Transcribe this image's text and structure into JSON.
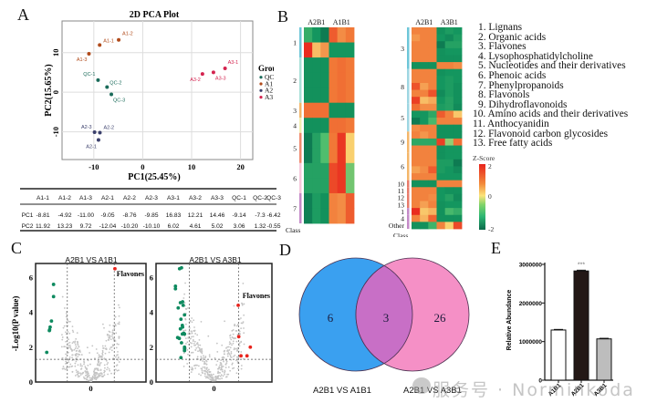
{
  "panels": {
    "A": {
      "letter": "A"
    },
    "B": {
      "letter": "B"
    },
    "C": {
      "letter": "C"
    },
    "D": {
      "letter": "D"
    },
    "E": {
      "letter": "E"
    }
  },
  "watermark": {
    "text": "服务号 · Norminkoda"
  },
  "chart_data": [
    {
      "id": "pca",
      "type": "scatter",
      "title": "2D PCA Plot",
      "xlabel": "PC1(25.45%)",
      "ylabel": "PC2(15.65%)",
      "xlim": [
        -16.5,
        22.5
      ],
      "ylim": [
        -17,
        18
      ],
      "xticks": [
        -10,
        0,
        10,
        20
      ],
      "yticks": [
        -10,
        0,
        10
      ],
      "grid": true,
      "legend_title": "Group",
      "legend_position": "right",
      "groups": [
        {
          "name": "QC",
          "color": "#1a6b5a"
        },
        {
          "name": "A1",
          "color": "#b04a1a"
        },
        {
          "name": "A2",
          "color": "#3a3f6b"
        },
        {
          "name": "A3",
          "color": "#d4234f"
        }
      ],
      "points": [
        {
          "label": "A1-1",
          "group": "A1",
          "x": -8.81,
          "y": 11.92
        },
        {
          "label": "A1-2",
          "group": "A1",
          "x": -4.92,
          "y": 13.23
        },
        {
          "label": "A1-3",
          "group": "A1",
          "x": -11.0,
          "y": 9.72
        },
        {
          "label": "A2-1",
          "group": "A2",
          "x": -9.05,
          "y": -12.04
        },
        {
          "label": "A2-2",
          "group": "A2",
          "x": -8.76,
          "y": -10.2
        },
        {
          "label": "A2-3",
          "group": "A2",
          "x": -9.85,
          "y": -10.1
        },
        {
          "label": "A3-1",
          "group": "A3",
          "x": 16.83,
          "y": 6.02
        },
        {
          "label": "A3-2",
          "group": "A3",
          "x": 12.21,
          "y": 4.61
        },
        {
          "label": "A3-3",
          "group": "A3",
          "x": 14.46,
          "y": 5.02
        },
        {
          "label": "QC-1",
          "group": "QC",
          "x": -9.14,
          "y": 3.06
        },
        {
          "label": "QC-2",
          "group": "QC",
          "x": -7.3,
          "y": 1.32
        },
        {
          "label": "QC-3",
          "group": "QC",
          "x": -6.42,
          "y": -0.55
        }
      ]
    },
    {
      "id": "pca-table",
      "type": "table",
      "columns": [
        "",
        "A1-1",
        "A1-2",
        "A1-3",
        "A2-1",
        "A2-2",
        "A2-3",
        "A3-1",
        "A3-2",
        "A3-3",
        "QC-1",
        "QC-2",
        "QC-3"
      ],
      "rows": [
        [
          "PC1",
          "-8.81",
          "-4.92",
          "-11.00",
          "-9.05",
          "-8.76",
          "-9.85",
          "16.83",
          "12.21",
          "14.46",
          "-9.14",
          "-7.3",
          "-6.42"
        ],
        [
          "PC2",
          "11.92",
          "13.23",
          "9.72",
          "-12.04",
          "-10.20",
          "-10.10",
          "6.02",
          "4.61",
          "5.02",
          "3.06",
          "1.32",
          "-0.55"
        ]
      ]
    },
    {
      "id": "heatmap-1",
      "type": "heatmap",
      "column_groups": [
        "A2B1",
        "A1B1"
      ],
      "class_label": "Class",
      "row_classes": [
        "1",
        "1",
        "2",
        "2",
        "2",
        "3",
        "4",
        "5",
        "5",
        "6",
        "6",
        "7",
        "7"
      ],
      "class_labels_shown": [
        "1",
        "2",
        "3",
        "4",
        "5",
        "6",
        "7"
      ],
      "values": [
        [
          -0.8,
          -1.2,
          -1.7,
          1.4,
          0.9,
          1.1
        ],
        [
          1.9,
          0.4,
          0.8,
          -1.2,
          -1.2,
          -1.2
        ],
        [
          -1.3,
          -1.3,
          -1.3,
          1.1,
          1.2,
          1.1
        ],
        [
          -1.3,
          -1.3,
          -1.3,
          1.1,
          1.2,
          1.1
        ],
        [
          -1.3,
          -1.3,
          -1.3,
          1.1,
          1.2,
          1.1
        ],
        [
          1.2,
          1.2,
          1.2,
          -1.3,
          -1.3,
          -1.3
        ],
        [
          -1.3,
          -1.3,
          -1.3,
          1.2,
          1.2,
          1.1
        ],
        [
          -1.7,
          -1.0,
          -0.5,
          1.1,
          1.8,
          0.2
        ],
        [
          -1.7,
          -1.0,
          -0.5,
          1.1,
          1.8,
          0.2
        ],
        [
          -1.0,
          -1.0,
          -1.0,
          1.6,
          1.8,
          -0.4
        ],
        [
          -1.0,
          -1.0,
          -1.0,
          1.6,
          1.8,
          -0.4
        ],
        [
          -1.6,
          -1.1,
          -1.3,
          1.0,
          0.9,
          1.4
        ],
        [
          -1.6,
          -1.1,
          -1.3,
          1.0,
          0.9,
          1.4
        ]
      ],
      "zlim": [
        -2,
        2
      ]
    },
    {
      "id": "heatmap-2",
      "type": "heatmap",
      "column_groups": [
        "A2B1",
        "A3B1"
      ],
      "class_label": "Class",
      "row_classes": [
        "3",
        "3",
        "3",
        "3",
        "3",
        "3",
        "8",
        "8",
        "8",
        "8",
        "8",
        "5",
        "5",
        "5",
        "5",
        "9",
        "9",
        "9",
        "6",
        "6",
        "6",
        "6",
        "10",
        "11",
        "12",
        "13",
        "1",
        "4",
        "Other"
      ],
      "class_labels_shown": [
        "3",
        "8",
        "5",
        "9",
        "6",
        "10",
        "11",
        "12",
        "13",
        "1",
        "4",
        "Other"
      ],
      "values": [
        [
          1.0,
          1.0,
          1.0,
          -1.3,
          -1.1,
          -1.2
        ],
        [
          0.8,
          1.0,
          1.0,
          -1.2,
          -1.4,
          -1.1
        ],
        [
          1.0,
          1.0,
          1.0,
          -1.7,
          -1.0,
          -1.0
        ],
        [
          1.0,
          1.0,
          1.0,
          -1.3,
          -1.2,
          -1.2
        ],
        [
          1.0,
          1.0,
          1.0,
          -1.3,
          -1.3,
          -1.3
        ],
        [
          -1.3,
          -1.3,
          -1.3,
          1.0,
          1.0,
          0.9
        ],
        [
          1.0,
          1.0,
          1.0,
          -1.3,
          -1.2,
          -1.2
        ],
        [
          1.0,
          1.0,
          1.0,
          -1.2,
          -1.1,
          -1.2
        ],
        [
          1.5,
          0.7,
          1.0,
          -1.2,
          -1.1,
          -1.3
        ],
        [
          1.0,
          1.0,
          1.5,
          -1.4,
          -1.1,
          -1.3
        ],
        [
          1.7,
          0.4,
          0.6,
          -1.2,
          -1.0,
          -1.3
        ],
        [
          1.2,
          0.9,
          0.9,
          -1.1,
          -1.0,
          -1.4
        ],
        [
          -1.2,
          -1.2,
          -0.9,
          1.4,
          1.0,
          0.3
        ],
        [
          -1.7,
          -1.2,
          -0.6,
          1.0,
          1.0,
          1.0
        ],
        [
          0.9,
          1.0,
          1.0,
          -1.3,
          -1.3,
          -1.3
        ],
        [
          1.0,
          0.8,
          1.0,
          -1.3,
          -1.3,
          -1.3
        ],
        [
          -0.9,
          -0.9,
          -0.9,
          1.7,
          -0.3,
          1.2
        ],
        [
          1.0,
          1.0,
          1.0,
          -1.3,
          -1.2,
          -1.2
        ],
        [
          1.0,
          1.0,
          1.0,
          -1.3,
          -1.2,
          -1.2
        ],
        [
          1.0,
          1.0,
          1.0,
          -1.1,
          -1.1,
          -1.7
        ],
        [
          0.7,
          0.9,
          1.4,
          -1.1,
          -1.2,
          -1.4
        ],
        [
          1.0,
          1.0,
          1.0,
          -1.2,
          -1.2,
          -1.2
        ],
        [
          -1.3,
          -1.3,
          -1.3,
          1.0,
          1.0,
          1.0
        ],
        [
          1.0,
          1.0,
          1.0,
          -1.2,
          -1.3,
          -1.3
        ],
        [
          1.0,
          1.0,
          0.9,
          -1.2,
          -1.0,
          -1.4
        ],
        [
          1.0,
          0.7,
          1.0,
          -1.3,
          -1.2,
          -1.2
        ],
        [
          1.9,
          0.3,
          0.5,
          -1.3,
          -0.6,
          -0.8
        ],
        [
          1.0,
          0.5,
          1.3,
          -1.3,
          -1.3,
          -1.3
        ],
        [
          -1.3,
          -1.3,
          -0.7,
          1.0,
          0.2,
          1.6
        ]
      ],
      "zlim": [
        -2,
        2
      ]
    },
    {
      "id": "class-legend",
      "type": "table",
      "items": [
        "1. Lignans",
        "2. Organic acids",
        "3. Flavones",
        "4. Lysophosphatidylcholine",
        "5. Nucleotides and their derivatives",
        "6. Phenoic acids",
        "7. Phenylpropanoids",
        "8. Flavonols",
        "9. Dihydroflavonoids",
        "10. Amino acids and their derivatives",
        "11. Anthocyanidin",
        "12. Flavonoid carbon glycosides",
        "13. Free fatty acids"
      ],
      "colorbar": {
        "title": "Z-Score",
        "ticks": [
          "2",
          "0",
          "-2"
        ],
        "colors": [
          "#e8231c",
          "#fbe37a",
          "#2bb673",
          "#0a6a4a"
        ]
      }
    },
    {
      "id": "volcano-1",
      "type": "scatter",
      "title": "A2B1 VS A1B1",
      "ylabel": "-Log10(P value)",
      "xtick_label": "0",
      "yticks": [
        0,
        2,
        4,
        6
      ],
      "ylim": [
        0,
        6.8
      ],
      "annotation": "Flavones",
      "up_points": [
        {
          "x": 0.92,
          "y": 6.5
        }
      ],
      "down_points": [
        {
          "x": -1.42,
          "y": 5.6
        },
        {
          "x": -1.42,
          "y": 4.9
        },
        {
          "x": -1.5,
          "y": 3.5
        },
        {
          "x": -1.55,
          "y": 3.15
        },
        {
          "x": -1.57,
          "y": 3.0
        },
        {
          "x": -1.58,
          "y": 2.95
        },
        {
          "x": -1.68,
          "y": 1.7
        }
      ]
    },
    {
      "id": "volcano-2",
      "type": "scatter",
      "title": "A2B1 VS A3B1",
      "ylabel": "-Log10(P value)",
      "xtick_label": "0",
      "yticks": [
        0,
        2,
        4,
        6
      ],
      "ylim": [
        0,
        6.8
      ],
      "annotation": "Flavones",
      "up_points": [
        {
          "x": 0.88,
          "y": 4.4
        },
        {
          "x": 0.9,
          "y": 2.6
        },
        {
          "x": 1.32,
          "y": 2.0
        },
        {
          "x": 0.98,
          "y": 1.5
        },
        {
          "x": 1.2,
          "y": 1.5
        }
      ],
      "down_points": [
        {
          "x": -1.25,
          "y": 6.5
        },
        {
          "x": -1.18,
          "y": 6.55
        },
        {
          "x": -1.4,
          "y": 5.5
        },
        {
          "x": -1.4,
          "y": 5.35
        },
        {
          "x": -1.22,
          "y": 4.55
        },
        {
          "x": -1.14,
          "y": 4.6
        },
        {
          "x": -1.12,
          "y": 4.4
        },
        {
          "x": -1.3,
          "y": 4.25
        },
        {
          "x": -1.07,
          "y": 3.85
        },
        {
          "x": -1.2,
          "y": 3.6
        },
        {
          "x": -1.15,
          "y": 3.25
        },
        {
          "x": -1.14,
          "y": 3.15
        },
        {
          "x": -1.22,
          "y": 3.05
        },
        {
          "x": -1.15,
          "y": 2.75
        },
        {
          "x": -1.1,
          "y": 2.8
        },
        {
          "x": -1.07,
          "y": 2.75
        },
        {
          "x": -1.32,
          "y": 2.55
        },
        {
          "x": -1.26,
          "y": 2.5
        },
        {
          "x": -1.18,
          "y": 2.25
        },
        {
          "x": -1.07,
          "y": 2.0
        },
        {
          "x": -1.07,
          "y": 1.9
        },
        {
          "x": -1.07,
          "y": 1.8
        },
        {
          "x": -1.2,
          "y": 1.4
        }
      ]
    },
    {
      "id": "venn",
      "type": "table",
      "sets": [
        {
          "name": "A2B1 VS A1B1",
          "only": 6,
          "color": "#3aa0f0"
        },
        {
          "name": "A2B1 VS A3B1",
          "only": 26,
          "color": "#f590c6"
        }
      ],
      "intersection": 3
    },
    {
      "id": "bar-abundance",
      "type": "bar",
      "ylabel": "Relative Abundance",
      "categories": [
        "A1B1",
        "A2B1",
        "A3B1"
      ],
      "values": [
        1300000,
        2830000,
        1070000
      ],
      "errors": [
        15000,
        20000,
        15000
      ],
      "colors": [
        "#ffffff",
        "#231816",
        "#bdbdbd"
      ],
      "ylim": [
        0,
        3000000
      ],
      "yticks": [
        "0",
        "1000000",
        "2000000",
        "3000000"
      ],
      "significance": {
        "category": "A2B1",
        "label": "***"
      }
    }
  ]
}
